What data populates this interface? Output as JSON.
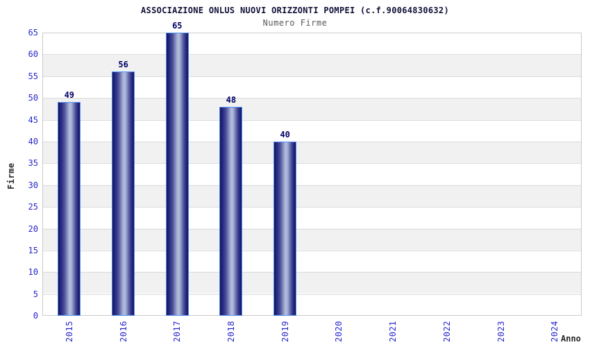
{
  "chart_data": {
    "type": "bar",
    "title": "ASSOCIAZIONE ONLUS NUOVI ORIZZONTI POMPEI (c.f.90064830632)",
    "subtitle": "Numero Firme",
    "xlabel": "Anno",
    "ylabel": "Firme",
    "categories": [
      "2015",
      "2016",
      "2017",
      "2018",
      "2019",
      "2020",
      "2021",
      "2022",
      "2023",
      "2024"
    ],
    "values": [
      49,
      56,
      65,
      48,
      40,
      null,
      null,
      null,
      null,
      null
    ],
    "bar_value_labels": [
      "49",
      "56",
      "65",
      "48",
      "40"
    ],
    "ylim": [
      0,
      65
    ],
    "yticks": [
      0,
      5,
      10,
      15,
      20,
      25,
      30,
      35,
      40,
      45,
      50,
      55,
      60,
      65
    ],
    "grid": "horizontal-bands",
    "legend": "none"
  },
  "colors": {
    "accent_blue": "#2626cc",
    "value_navy": "#000066",
    "title_color": "#101038",
    "subtitle_color": "#595959",
    "axis_label_color": "#262626",
    "plot_border": "#c9c9c9",
    "band_gray": "#f1f1f1",
    "gridline": "#dcdcdc",
    "bar_dark": "#15155c",
    "bar_highlight": "#b7c1df",
    "bar_border": "#4d8ef0"
  }
}
